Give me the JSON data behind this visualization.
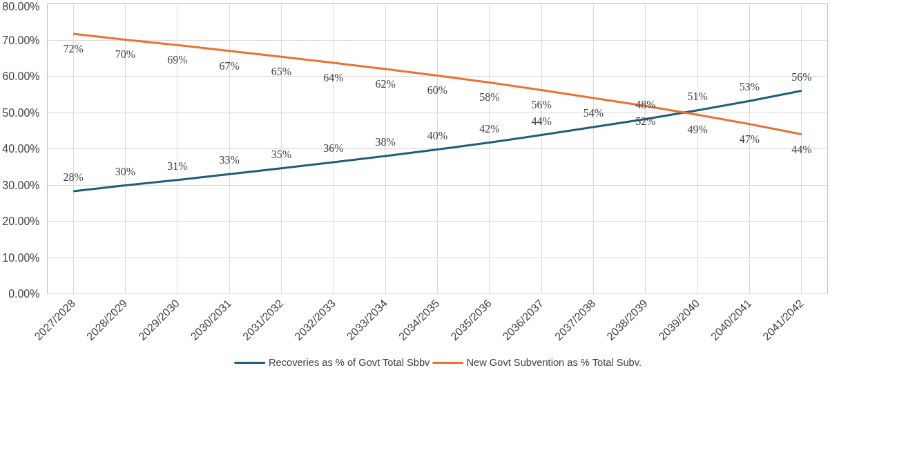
{
  "chart_data": {
    "type": "line",
    "categories": [
      "2027/2028",
      "2028/2029",
      "2029/2030",
      "2030/2031",
      "2031/2032",
      "2032/2033",
      "2033/2034",
      "2034/2035",
      "2035/2036",
      "2036/2037",
      "2037/2038",
      "2038/2039",
      "2039/2040",
      "2040/2041",
      "2041/2042"
    ],
    "series": [
      {
        "name": "Recoveries as % of Govt Total Sbbv",
        "color": "#1f5c7a",
        "values": [
          28.3,
          29.9,
          31.4,
          33.0,
          34.6,
          36.3,
          38.0,
          39.8,
          41.7,
          43.8,
          46.0,
          48.2,
          50.6,
          53.2,
          56.0
        ],
        "value_labels": [
          "28%",
          "30%",
          "31%",
          "33%",
          "35%",
          "36%",
          "38%",
          "40%",
          "42%",
          "44%",
          null,
          "48%",
          "51%",
          "53%",
          "56%"
        ]
      },
      {
        "name": "New Govt Subvention as % Total Subv.",
        "color": "#e97132",
        "values": [
          71.7,
          70.1,
          68.6,
          67.0,
          65.4,
          63.7,
          62.0,
          60.2,
          58.3,
          56.2,
          54.0,
          51.8,
          49.4,
          46.8,
          44.0
        ],
        "value_labels": [
          "72%",
          "70%",
          "69%",
          "67%",
          "65%",
          "64%",
          "62%",
          "60%",
          "58%",
          "56%",
          "54%",
          "52%",
          "49%",
          "47%",
          "44%"
        ]
      }
    ],
    "ylim": [
      0,
      80
    ],
    "yticks": [
      {
        "value": 0,
        "label": "0.00%"
      },
      {
        "value": 10,
        "label": "10.00%"
      },
      {
        "value": 20,
        "label": "20.00%"
      },
      {
        "value": 30,
        "label": "30.00%"
      },
      {
        "value": 40,
        "label": "40.00%"
      },
      {
        "value": 50,
        "label": "50.00%"
      },
      {
        "value": 60,
        "label": "60.00%"
      },
      {
        "value": 70,
        "label": "70.00%"
      },
      {
        "value": 80,
        "label": "80.00%"
      }
    ],
    "grid": true,
    "legend": "bottom",
    "marker": "none",
    "line_style": "solid"
  }
}
